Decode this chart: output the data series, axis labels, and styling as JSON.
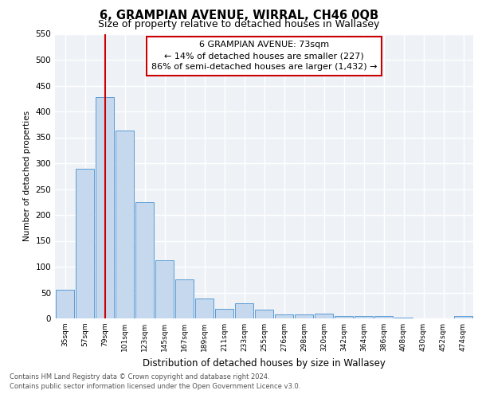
{
  "title": "6, GRAMPIAN AVENUE, WIRRAL, CH46 0QB",
  "subtitle": "Size of property relative to detached houses in Wallasey",
  "xlabel": "Distribution of detached houses by size in Wallasey",
  "ylabel": "Number of detached properties",
  "categories": [
    "35sqm",
    "57sqm",
    "79sqm",
    "101sqm",
    "123sqm",
    "145sqm",
    "167sqm",
    "189sqm",
    "211sqm",
    "233sqm",
    "255sqm",
    "276sqm",
    "298sqm",
    "320sqm",
    "342sqm",
    "364sqm",
    "386sqm",
    "408sqm",
    "430sqm",
    "452sqm",
    "474sqm"
  ],
  "values": [
    55,
    290,
    428,
    363,
    224,
    113,
    76,
    39,
    19,
    29,
    17,
    8,
    7,
    9,
    5,
    5,
    5,
    1,
    0,
    0,
    4
  ],
  "bar_color": "#c5d8ed",
  "bar_edge_color": "#5b9bd5",
  "property_line_idx": 2,
  "property_line_label": "6 GRAMPIAN AVENUE: 73sqm",
  "annotation_line1": "← 14% of detached houses are smaller (227)",
  "annotation_line2": "86% of semi-detached houses are larger (1,432) →",
  "annotation_box_color": "#cc0000",
  "ylim": [
    0,
    550
  ],
  "yticks": [
    0,
    50,
    100,
    150,
    200,
    250,
    300,
    350,
    400,
    450,
    500,
    550
  ],
  "footer1": "Contains HM Land Registry data © Crown copyright and database right 2024.",
  "footer2": "Contains public sector information licensed under the Open Government Licence v3.0.",
  "bg_color": "#eef2f7",
  "grid_color": "#ffffff",
  "fig_bg_color": "#ffffff"
}
